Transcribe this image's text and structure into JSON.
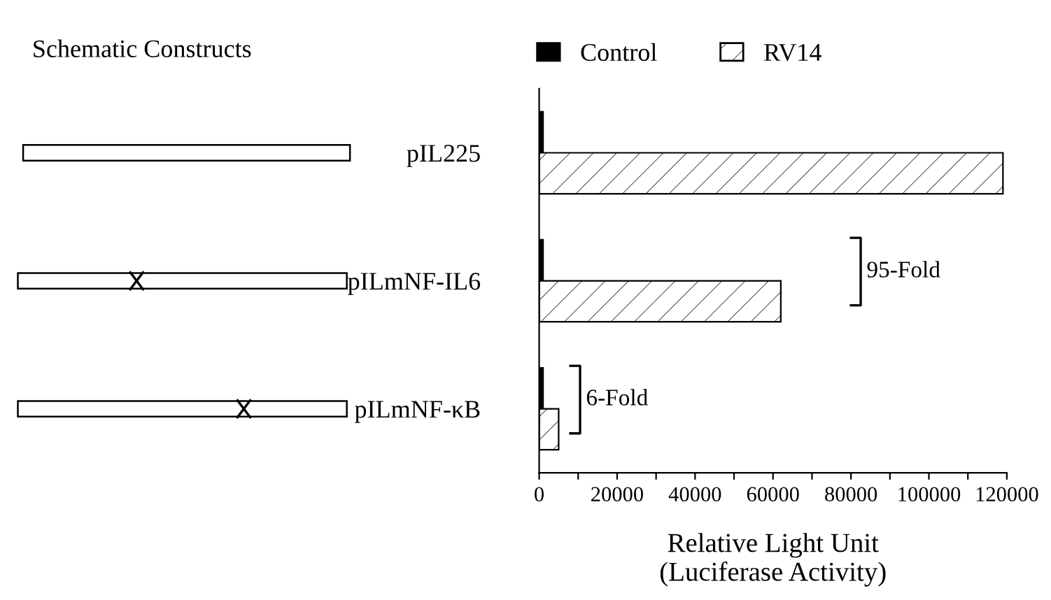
{
  "chart_data": {
    "type": "bar",
    "orientation": "horizontal",
    "categories": [
      "pIL225",
      "pILmNF-IL6",
      "pILmNF-κB"
    ],
    "series": [
      {
        "name": "Control",
        "color": "#000000",
        "values": [
          1000,
          1000,
          1000
        ]
      },
      {
        "name": "RV14",
        "color": "#000000",
        "values": [
          119000,
          62000,
          5000
        ]
      }
    ],
    "xlabel": "Relative Light Unit\n(Luciferase Activity)",
    "xlim": [
      0,
      120000
    ],
    "xticks": [
      0,
      {
        "value": 10000,
        "label": null
      },
      20000,
      {
        "value": 30000,
        "label": null
      },
      40000,
      {
        "value": 50000,
        "label": null
      },
      60000,
      {
        "value": 70000,
        "label": null
      },
      80000,
      {
        "value": 90000,
        "label": null
      },
      100000,
      {
        "value": 110000,
        "label": null
      },
      120000
    ],
    "annotations": [
      "Schematic Constructs",
      "95-Fold",
      "6-Fold"
    ],
    "legend": "top",
    "grid": false
  }
}
